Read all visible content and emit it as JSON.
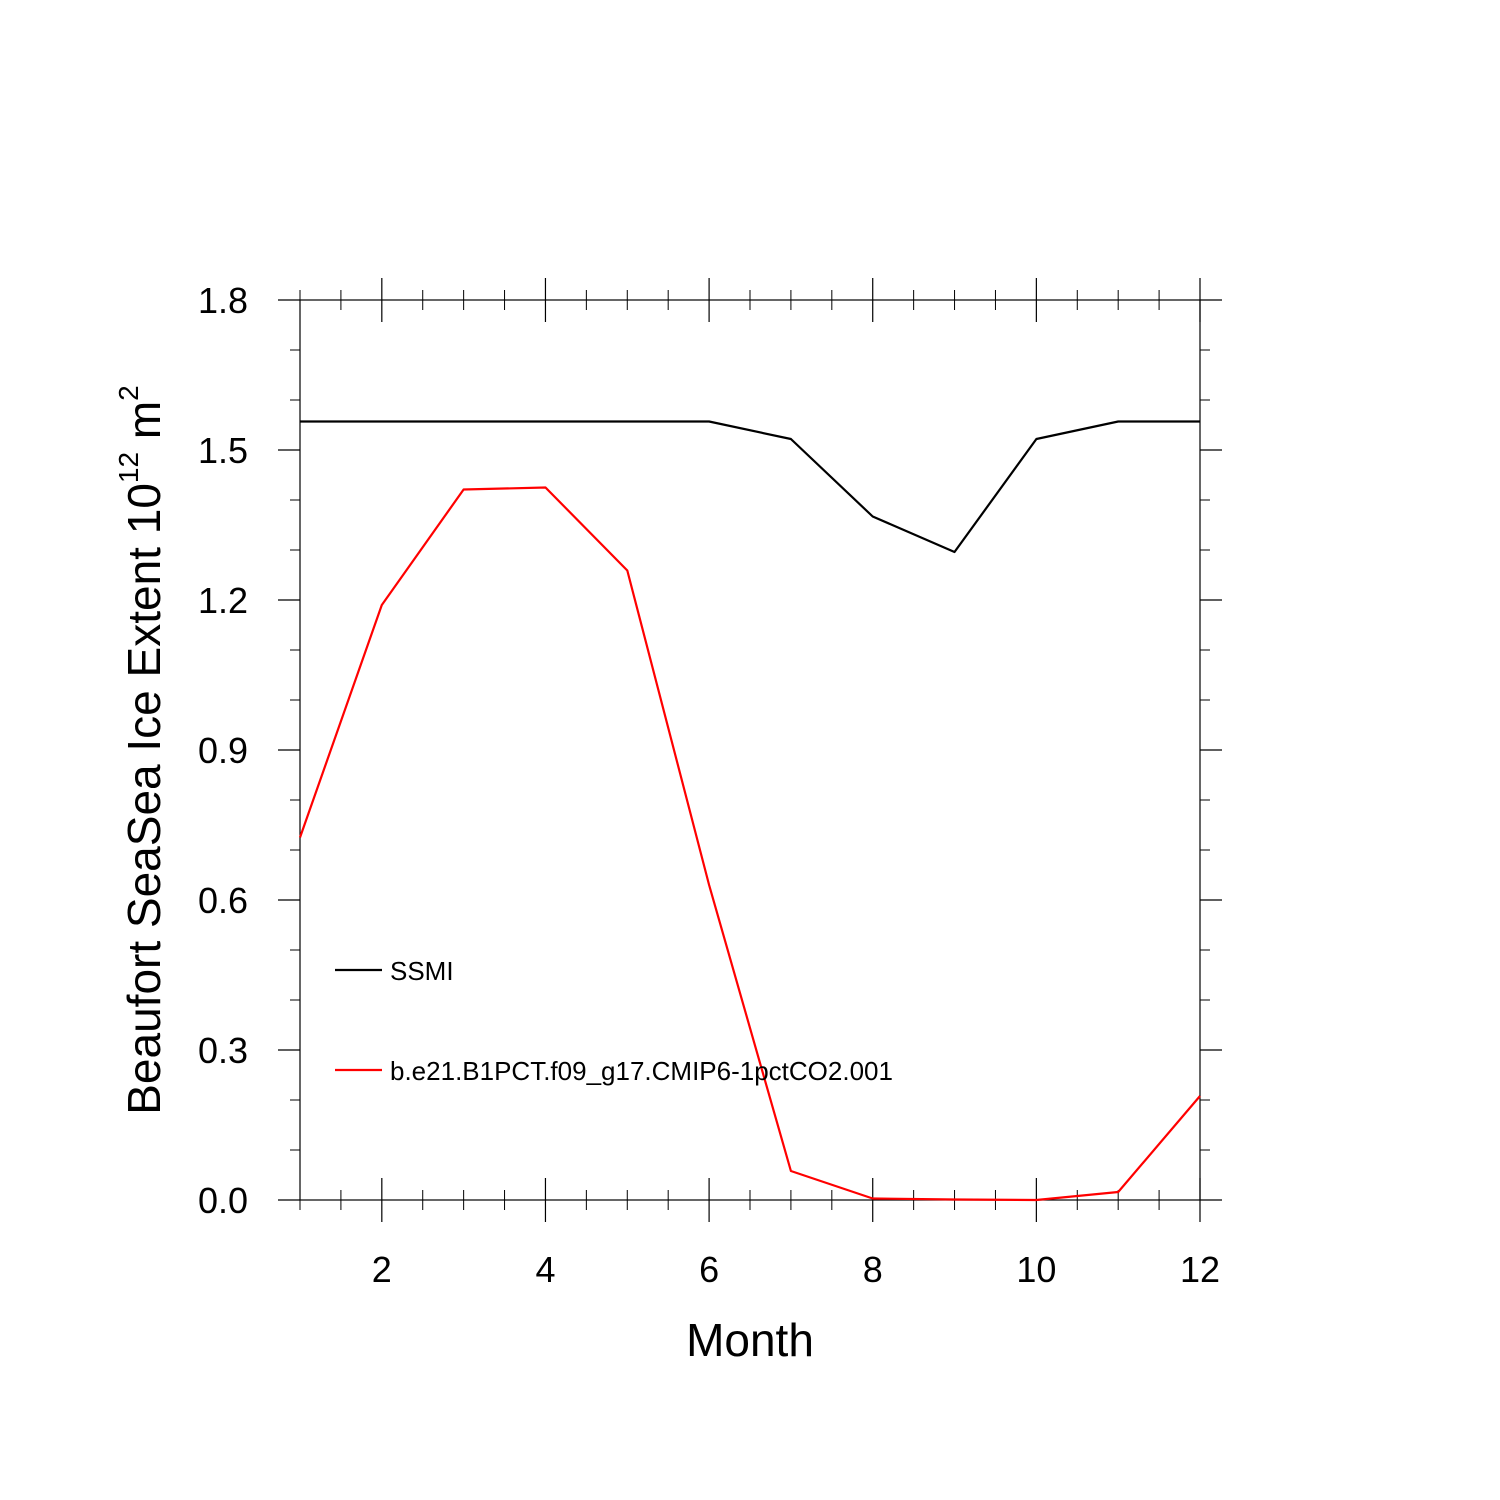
{
  "chart_data": {
    "type": "line",
    "xlabel": "Month",
    "ylabel": "Beaufort SeaSea Ice Extent 10",
    "ylabel_exponent": "12",
    "ylabel_unit": " m",
    "ylabel_unit_exponent": "2",
    "xlim": [
      1,
      12
    ],
    "ylim": [
      0.0,
      1.8
    ],
    "x_ticks": [
      2,
      4,
      6,
      8,
      10,
      12
    ],
    "x_tick_labels": [
      "2",
      "4",
      "6",
      "8",
      "10",
      "12"
    ],
    "y_ticks": [
      0.0,
      0.3,
      0.6,
      0.9,
      1.2,
      1.5,
      1.8
    ],
    "y_tick_labels": [
      "0.0",
      "0.3",
      "0.6",
      "0.9",
      "1.2",
      "1.5",
      "1.8"
    ],
    "grid": false,
    "legend_position": "lower-left",
    "x": [
      1,
      2,
      3,
      4,
      5,
      6,
      7,
      8,
      9,
      10,
      11,
      12
    ],
    "series": [
      {
        "name": "SSMI",
        "color": "#000000",
        "values": [
          1.557,
          1.557,
          1.557,
          1.557,
          1.557,
          1.557,
          1.522,
          1.367,
          1.296,
          1.522,
          1.557,
          1.557
        ]
      },
      {
        "name": "b.e21.B1PCT.f09_g17.CMIP6-1pctCO2.001",
        "color": "#ff0000",
        "values": [
          0.725,
          1.19,
          1.421,
          1.425,
          1.259,
          0.63,
          0.058,
          0.003,
          0.001,
          0.0,
          0.016,
          0.208
        ]
      }
    ]
  }
}
